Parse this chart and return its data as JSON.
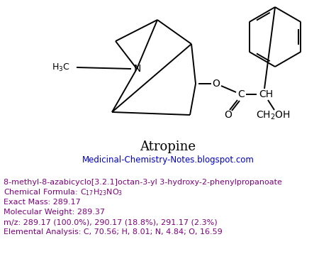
{
  "title": "Atropine",
  "subtitle": "Medicinal-Chemistry-Notes.blogspot.com",
  "title_color": "#000000",
  "subtitle_color": "#0000cc",
  "info_color": "#800080",
  "background_color": "#ffffff",
  "line1": "8-methyl-8-azabicyclo[3.2.1]octan-3-yl 3-hydroxy-2-phenylpropanoate",
  "line2": "Chemical Formula: C$_{17}$H$_{23}$NO$_3$",
  "line3": "Exact Mass: 289.17",
  "line4": "Molecular Weight: 289.37",
  "line5": "m/z: 289.17 (100.0%), 290.17 (18.8%), 291.17 (2.3%)",
  "line6": "Elemental Analysis: C, 70.56; H, 8.01; N, 4.84; O, 16.59",
  "figsize": [
    4.74,
    3.82
  ],
  "dpi": 100
}
